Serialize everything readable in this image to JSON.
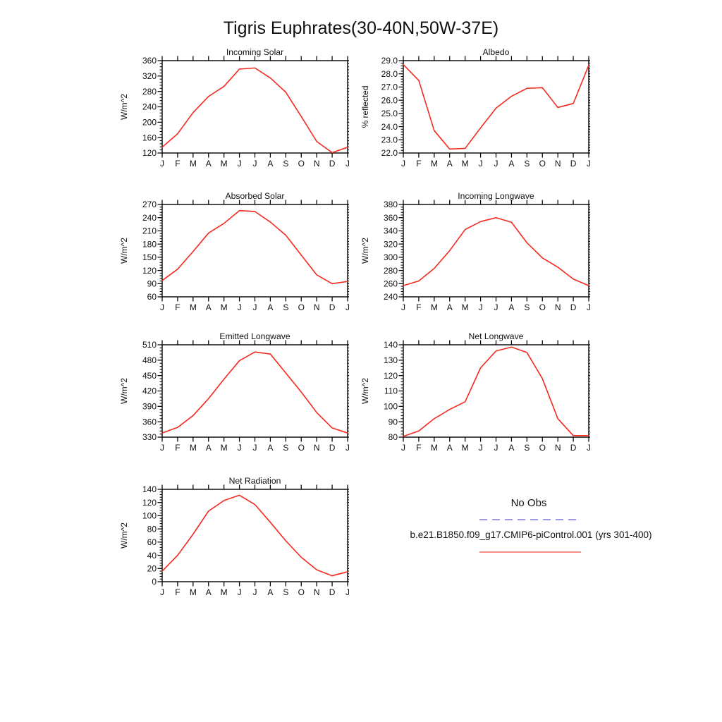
{
  "title": "Tigris Euphrates(30-40N,50W-37E)",
  "months": [
    "J",
    "F",
    "M",
    "A",
    "M",
    "J",
    "J",
    "A",
    "S",
    "O",
    "N",
    "D",
    "J"
  ],
  "chart_data": [
    {
      "type": "line",
      "title": "Incoming Solar",
      "ylabel": "W/m^2",
      "ylim": [
        120,
        360
      ],
      "ytick_step": 40,
      "decimals": 0,
      "grid": false,
      "categories": [
        "J",
        "F",
        "M",
        "A",
        "M",
        "J",
        "J",
        "A",
        "S",
        "O",
        "N",
        "D",
        "J"
      ],
      "values": [
        135,
        170,
        225,
        267,
        293,
        338,
        341,
        315,
        278,
        215,
        150,
        121,
        135
      ]
    },
    {
      "type": "line",
      "title": "Albedo",
      "ylabel": "% reflected",
      "ylim": [
        22.0,
        29.0
      ],
      "ytick_step": 1.0,
      "decimals": 1,
      "grid": false,
      "categories": [
        "J",
        "F",
        "M",
        "A",
        "M",
        "J",
        "J",
        "A",
        "S",
        "O",
        "N",
        "D",
        "J"
      ],
      "values": [
        28.7,
        27.5,
        23.7,
        22.3,
        22.35,
        23.9,
        25.4,
        26.3,
        26.9,
        26.95,
        25.45,
        25.75,
        28.65
      ]
    },
    {
      "type": "line",
      "title": "Absorbed Solar",
      "ylabel": "W/m^2",
      "ylim": [
        60,
        270
      ],
      "ytick_step": 30,
      "decimals": 0,
      "grid": false,
      "categories": [
        "J",
        "F",
        "M",
        "A",
        "M",
        "J",
        "J",
        "A",
        "S",
        "O",
        "N",
        "D",
        "J"
      ],
      "values": [
        97,
        123,
        163,
        205,
        227,
        256,
        254,
        230,
        200,
        155,
        110,
        90,
        95
      ]
    },
    {
      "type": "line",
      "title": "Incoming Longwave",
      "ylabel": "W/m^2",
      "ylim": [
        240,
        380
      ],
      "ytick_step": 20,
      "decimals": 0,
      "grid": false,
      "categories": [
        "J",
        "F",
        "M",
        "A",
        "M",
        "J",
        "J",
        "A",
        "S",
        "O",
        "N",
        "D",
        "J"
      ],
      "values": [
        257,
        264,
        283,
        310,
        342,
        354,
        360,
        353,
        322,
        299,
        285,
        267,
        257
      ]
    },
    {
      "type": "line",
      "title": "Emitted Longwave",
      "ylabel": "W/m^2",
      "ylim": [
        330,
        510
      ],
      "ytick_step": 30,
      "decimals": 0,
      "grid": false,
      "categories": [
        "J",
        "F",
        "M",
        "A",
        "M",
        "J",
        "J",
        "A",
        "S",
        "O",
        "N",
        "D",
        "J"
      ],
      "values": [
        338,
        349,
        372,
        405,
        443,
        479,
        496,
        492,
        455,
        418,
        378,
        348,
        338
      ]
    },
    {
      "type": "line",
      "title": "Net Longwave",
      "ylabel": "W/m^2",
      "ylim": [
        80,
        140
      ],
      "ytick_step": 10,
      "decimals": 0,
      "grid": false,
      "categories": [
        "J",
        "F",
        "M",
        "A",
        "M",
        "J",
        "J",
        "A",
        "S",
        "O",
        "N",
        "D",
        "J"
      ],
      "values": [
        80.5,
        84,
        92,
        98,
        103,
        125,
        136,
        138.5,
        135,
        118,
        92,
        81,
        81
      ]
    },
    {
      "type": "line",
      "title": "Net Radiation",
      "ylabel": "W/m^2",
      "ylim": [
        0,
        140
      ],
      "ytick_step": 20,
      "decimals": 0,
      "grid": false,
      "categories": [
        "J",
        "F",
        "M",
        "A",
        "M",
        "J",
        "J",
        "A",
        "S",
        "O",
        "N",
        "D",
        "J"
      ],
      "values": [
        16,
        40,
        72,
        107,
        123,
        131,
        117,
        90,
        62,
        37,
        18,
        9,
        15
      ]
    }
  ],
  "series_color": "#f4291f",
  "legend": {
    "no_obs": {
      "label": "No Obs",
      "color": "#7a7ad2",
      "style": "dashed"
    },
    "model": {
      "label": "b.e21.B1850.f09_g17.CMIP6-piControl.001 (yrs 301-400)",
      "color": "#f4685c",
      "style": "solid"
    }
  }
}
